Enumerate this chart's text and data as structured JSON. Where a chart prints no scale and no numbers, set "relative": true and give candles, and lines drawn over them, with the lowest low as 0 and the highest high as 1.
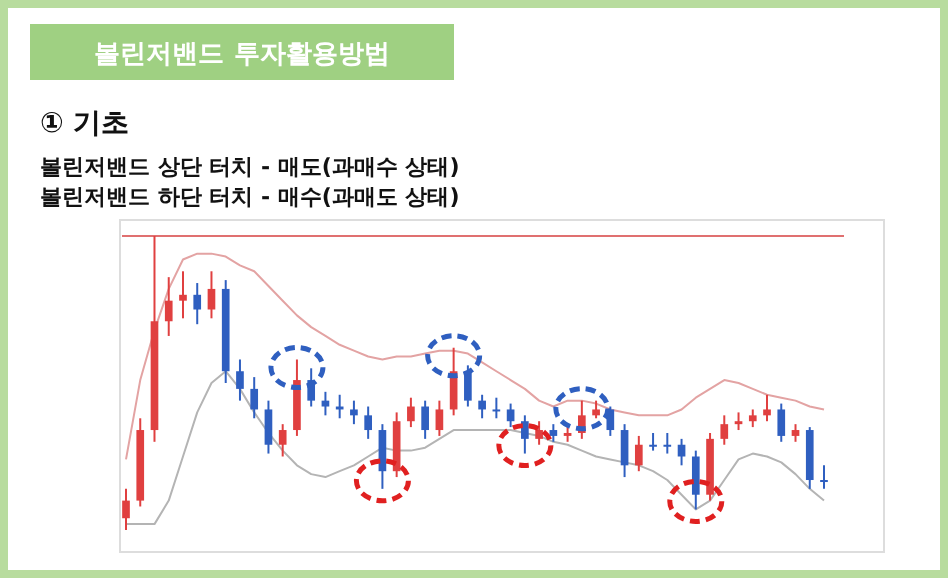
{
  "chart_data": {
    "type": "candlestick",
    "title": "볼린저밴드 투자활용방법",
    "subtitle": "① 기초",
    "annotations": [
      "볼린저밴드 상단 터치 - 매도(과매수 상태)",
      "볼린저밴드 하단 터치 - 매수(과매도 상태)"
    ],
    "relative": true,
    "categories": [
      null,
      null,
      null,
      null,
      null,
      null,
      null,
      null,
      null,
      null,
      null,
      null,
      null,
      null,
      null,
      null,
      null,
      null,
      null,
      null,
      null,
      null,
      null,
      null,
      null,
      null,
      null,
      null,
      null,
      null,
      null,
      null,
      null,
      null,
      null,
      null,
      null,
      null,
      null,
      null,
      null,
      null,
      null,
      null,
      null,
      null,
      null,
      null,
      null,
      null
    ],
    "ohlc": [
      [
        0.04,
        0.14,
        0,
        0.1
      ],
      [
        0.1,
        0.38,
        0.08,
        0.34
      ],
      [
        0.34,
        1.0,
        0.3,
        0.71
      ],
      [
        0.71,
        0.86,
        0.66,
        0.78
      ],
      [
        0.78,
        0.88,
        0.72,
        0.8
      ],
      [
        0.8,
        0.84,
        0.7,
        0.75
      ],
      [
        0.75,
        0.88,
        0.72,
        0.82
      ],
      [
        0.82,
        0.85,
        0.5,
        0.54
      ],
      [
        0.54,
        0.58,
        0.44,
        0.48
      ],
      [
        0.48,
        0.52,
        0.38,
        0.41
      ],
      [
        0.41,
        0.44,
        0.26,
        0.29
      ],
      [
        0.29,
        0.36,
        0.25,
        0.34
      ],
      [
        0.34,
        0.58,
        0.32,
        0.51
      ],
      [
        0.51,
        0.55,
        0.42,
        0.44
      ],
      [
        0.44,
        0.47,
        0.39,
        0.42
      ],
      [
        0.42,
        0.46,
        0.38,
        0.41
      ],
      [
        0.41,
        0.44,
        0.36,
        0.39
      ],
      [
        0.39,
        0.42,
        0.31,
        0.34
      ],
      [
        0.34,
        0.36,
        0.14,
        0.2
      ],
      [
        0.2,
        0.4,
        0.18,
        0.37
      ],
      [
        0.37,
        0.45,
        0.35,
        0.42
      ],
      [
        0.42,
        0.44,
        0.31,
        0.34
      ],
      [
        0.34,
        0.44,
        0.32,
        0.41
      ],
      [
        0.41,
        0.62,
        0.39,
        0.54
      ],
      [
        0.54,
        0.56,
        0.42,
        0.44
      ],
      [
        0.44,
        0.46,
        0.38,
        0.41
      ],
      [
        0.41,
        0.45,
        0.38,
        0.41
      ],
      [
        0.41,
        0.43,
        0.35,
        0.37
      ],
      [
        0.37,
        0.39,
        0.26,
        0.31
      ],
      [
        0.31,
        0.37,
        0.29,
        0.34
      ],
      [
        0.34,
        0.36,
        0.3,
        0.32
      ],
      [
        0.32,
        0.36,
        0.3,
        0.33
      ],
      [
        0.33,
        0.44,
        0.31,
        0.39
      ],
      [
        0.39,
        0.44,
        0.38,
        0.41
      ],
      [
        0.41,
        0.42,
        0.32,
        0.34
      ],
      [
        0.34,
        0.36,
        0.18,
        0.22
      ],
      [
        0.22,
        0.32,
        0.2,
        0.29
      ],
      [
        0.29,
        0.33,
        0.27,
        0.29
      ],
      [
        0.29,
        0.33,
        0.26,
        0.29
      ],
      [
        0.29,
        0.31,
        0.22,
        0.25
      ],
      [
        0.25,
        0.27,
        0.07,
        0.12
      ],
      [
        0.12,
        0.33,
        0.1,
        0.31
      ],
      [
        0.31,
        0.39,
        0.29,
        0.36
      ],
      [
        0.36,
        0.4,
        0.34,
        0.37
      ],
      [
        0.37,
        0.41,
        0.35,
        0.39
      ],
      [
        0.39,
        0.46,
        0.37,
        0.41
      ],
      [
        0.41,
        0.43,
        0.3,
        0.32
      ],
      [
        0.32,
        0.36,
        0.3,
        0.34
      ],
      [
        0.34,
        0.35,
        0.14,
        0.17
      ],
      [
        0.17,
        0.22,
        0.14,
        0.17
      ]
    ],
    "colors": [
      "#e04040",
      "#e04040",
      "#e04040",
      "#e04040",
      "#e04040",
      "#2f5fc0",
      "#e04040",
      "#2f5fc0",
      "#2f5fc0",
      "#2f5fc0",
      "#2f5fc0",
      "#e04040",
      "#e04040",
      "#2f5fc0",
      "#2f5fc0",
      "#2f5fc0",
      "#2f5fc0",
      "#2f5fc0",
      "#2f5fc0",
      "#e04040",
      "#e04040",
      "#2f5fc0",
      "#e04040",
      "#e04040",
      "#2f5fc0",
      "#2f5fc0",
      "#2f5fc0",
      "#2f5fc0",
      "#2f5fc0",
      "#e04040",
      "#2f5fc0",
      "#e04040",
      "#e04040",
      "#e04040",
      "#2f5fc0",
      "#2f5fc0",
      "#e04040",
      "#2f5fc0",
      "#2f5fc0",
      "#2f5fc0",
      "#2f5fc0",
      "#e04040",
      "#e04040",
      "#e04040",
      "#e04040",
      "#e04040",
      "#2f5fc0",
      "#e04040",
      "#2f5fc0",
      "#2f5fc0"
    ],
    "series": [
      {
        "type": "line",
        "color": "#e3a3a3",
        "values": [
          0.24,
          0.51,
          0.68,
          0.82,
          0.92,
          0.94,
          0.94,
          0.93,
          0.9,
          0.88,
          0.83,
          0.78,
          0.73,
          0.69,
          0.66,
          0.63,
          0.61,
          0.59,
          0.58,
          0.59,
          0.59,
          0.6,
          0.61,
          0.61,
          0.6,
          0.57,
          0.54,
          0.51,
          0.48,
          0.44,
          0.42,
          0.44,
          0.44,
          0.43,
          0.41,
          0.4,
          0.39,
          0.39,
          0.39,
          0.41,
          0.45,
          0.48,
          0.51,
          0.5,
          0.48,
          0.46,
          0.45,
          0.44,
          0.42,
          0.41
        ]
      },
      {
        "type": "line",
        "color": "#b4b4b4",
        "values": [
          0.02,
          0.02,
          0.02,
          0.1,
          0.25,
          0.4,
          0.5,
          0.54,
          0.48,
          0.4,
          0.33,
          0.27,
          0.22,
          0.19,
          0.18,
          0.2,
          0.22,
          0.25,
          0.28,
          0.27,
          0.27,
          0.28,
          0.31,
          0.34,
          0.34,
          0.34,
          0.34,
          0.34,
          0.33,
          0.32,
          0.3,
          0.29,
          0.27,
          0.25,
          0.24,
          0.23,
          0.22,
          0.2,
          0.17,
          0.12,
          0.07,
          0.1,
          0.17,
          0.24,
          0.26,
          0.25,
          0.23,
          0.19,
          0.14,
          0.1
        ]
      }
    ],
    "ref_lines": [
      {
        "axis": "y",
        "value": 1,
        "color": "#e07070"
      }
    ]
  }
}
